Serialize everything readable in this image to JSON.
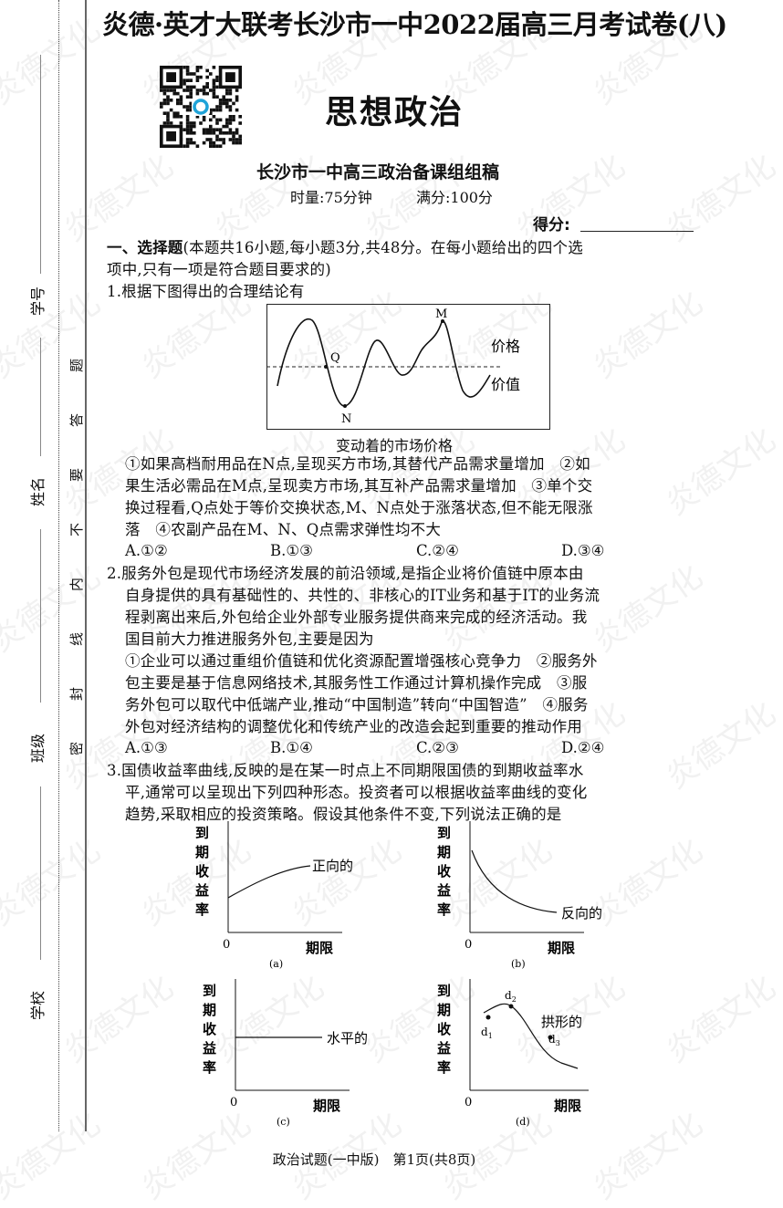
{
  "header": {
    "exam_title": "炎德·英才大联考长沙市一中2022届高三月考试卷(八)",
    "subject": "思想政治",
    "compiler": "长沙市一中高三政治备课组组稿",
    "time_label": "时量:75分钟",
    "full_score_label": "满分:100分",
    "score_label": "得分:"
  },
  "margin": {
    "fields": [
      "学号",
      "姓名",
      "班级",
      "学校"
    ],
    "seal_chars": [
      "题",
      "答",
      "要",
      "不",
      "内",
      "线",
      "封",
      "密"
    ]
  },
  "watermark": "炎德文化",
  "section": {
    "lines": [
      "一、选择题(本题共16小题,每小题3分,共48分。在每小题给出的四个选",
      "项中,只有一项是符合题目要求的)"
    ]
  },
  "q1": {
    "stem": "1.根据下图得出的合理结论有",
    "figure": {
      "caption": "变动着的市场价格",
      "point_m": "M",
      "point_q": "Q",
      "point_n": "N",
      "price_label": "价格",
      "value_label": "价值"
    },
    "statement_lines": [
      "①如果高档耐用品在N点,呈现买方市场,其替代产品需求量增加　②如",
      "果生活必需品在M点,呈现卖方市场,其互补产品需求量增加　③单个交",
      "换过程看,Q点处于等价交换状态,M、N点处于涨落状态,但不能无限涨",
      "落　④农副产品在M、N、Q点需求弹性均不大"
    ],
    "options": [
      "A.①②",
      "B.①③",
      "C.②④",
      "D.③④"
    ]
  },
  "q2": {
    "stem_lines": [
      "2.服务外包是现代市场经济发展的前沿领域,是指企业将价值链中原本由",
      "自身提供的具有基础性的、共性的、非核心的IT业务和基于IT的业务流",
      "程剥离出来后,外包给企业外部专业服务提供商来完成的经济活动。我",
      "国目前大力推进服务外包,主要是因为"
    ],
    "statement_lines": [
      "①企业可以通过重组价值链和优化资源配置增强核心竞争力　②服务外",
      "包主要是基于信息网络技术,其服务性工作通过计算机操作完成　③服",
      "务外包可以取代中低端产业,推动“中国制造”转向“中国智造”　④服务",
      "外包对经济结构的调整优化和传统产业的改造会起到重要的推动作用"
    ],
    "options": [
      "A.①③",
      "B.①④",
      "C.②③",
      "D.②④"
    ]
  },
  "q3": {
    "stem_lines": [
      "3.国债收益率曲线,反映的是在某一时点上不同期限国债的到期收益率水",
      "平,通常可以呈现出下列四种形态。投资者可以根据收益率曲线的变化",
      "趋势,采取相应的投资策略。假设其他条件不变,下列说法正确的是"
    ],
    "graphs": {
      "ylabel": [
        "到",
        "期",
        "收",
        "益",
        "率"
      ],
      "xlabel": "期限",
      "origin": "0",
      "a": {
        "tag": "(a)",
        "curve_label": "正向的"
      },
      "b": {
        "tag": "(b)",
        "curve_label": "反向的"
      },
      "c": {
        "tag": "(c)",
        "curve_label": "水平的"
      },
      "d": {
        "tag": "(d)",
        "curve_label": "拱形的",
        "points": [
          "d1",
          "d2",
          "d3"
        ]
      }
    }
  },
  "footer": "政治试题(一中版)　第1页(共8页)"
}
